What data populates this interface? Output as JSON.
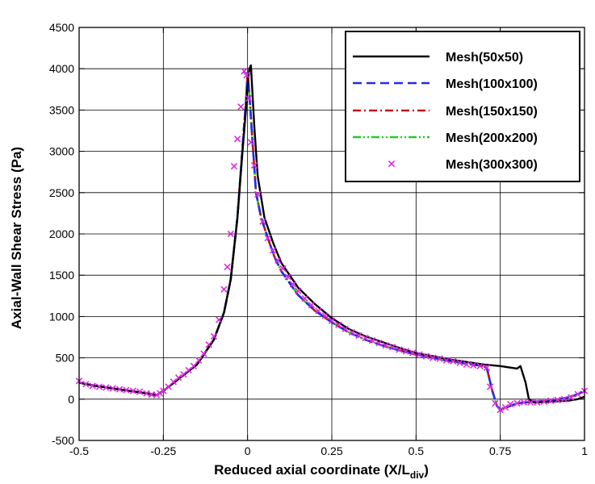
{
  "chart_data": {
    "type": "line",
    "xlabel": "Reduced axial coordinate (X/L",
    "xlabel_sub": "div",
    "xlabel_close": ")",
    "ylabel": "Axial-Wall Shear Stress (Pa)",
    "xlim": [
      -0.5,
      1.0
    ],
    "ylim": [
      -500,
      4500
    ],
    "xticks": [
      -0.5,
      -0.25,
      0,
      0.25,
      0.5,
      0.75,
      1
    ],
    "xtick_labels": [
      "-0.5",
      "-0.25",
      "0",
      "0.25",
      "0.5",
      "0.75",
      "1"
    ],
    "yticks": [
      -500,
      0,
      500,
      1000,
      1500,
      2000,
      2500,
      3000,
      3500,
      4000,
      4500
    ],
    "ytick_labels": [
      "-500",
      "0",
      "500",
      "1000",
      "1500",
      "2000",
      "2500",
      "3000",
      "3500",
      "4000",
      "4500"
    ],
    "grid": true,
    "legend_position": "top-right",
    "series": [
      {
        "name": "Mesh(50x50)",
        "color": "#000000",
        "style": "solid",
        "x": [
          -0.5,
          -0.45,
          -0.4,
          -0.35,
          -0.3,
          -0.27,
          -0.25,
          -0.2,
          -0.15,
          -0.1,
          -0.07,
          -0.05,
          -0.03,
          -0.015,
          -0.005,
          0.0,
          0.005,
          0.01,
          0.02,
          0.03,
          0.05,
          0.075,
          0.1,
          0.15,
          0.2,
          0.25,
          0.3,
          0.35,
          0.4,
          0.45,
          0.5,
          0.55,
          0.6,
          0.65,
          0.7,
          0.75,
          0.8,
          0.81,
          0.825,
          0.835,
          0.85,
          0.9,
          0.95,
          0.98,
          1.0
        ],
        "y": [
          200,
          160,
          130,
          100,
          70,
          50,
          100,
          260,
          420,
          720,
          1050,
          1450,
          2200,
          3000,
          3500,
          3800,
          4000,
          4040,
          3300,
          2700,
          2200,
          1900,
          1650,
          1350,
          1150,
          980,
          850,
          760,
          690,
          620,
          560,
          520,
          480,
          450,
          420,
          400,
          370,
          400,
          200,
          0,
          -40,
          -30,
          -20,
          0,
          30
        ]
      },
      {
        "name": "Mesh(100x100)",
        "color": "#1f2fe8",
        "style": "dashed",
        "x": [
          -0.5,
          -0.45,
          -0.4,
          -0.35,
          -0.3,
          -0.27,
          -0.25,
          -0.2,
          -0.15,
          -0.1,
          -0.07,
          -0.05,
          -0.03,
          -0.015,
          -0.005,
          0.0,
          0.005,
          0.015,
          0.025,
          0.04,
          0.06,
          0.08,
          0.1,
          0.15,
          0.2,
          0.25,
          0.3,
          0.35,
          0.4,
          0.45,
          0.5,
          0.55,
          0.6,
          0.65,
          0.7,
          0.71,
          0.725,
          0.74,
          0.75,
          0.8,
          0.85,
          0.9,
          0.95,
          0.98,
          1.0
        ],
        "y": [
          200,
          160,
          130,
          100,
          70,
          50,
          100,
          260,
          420,
          720,
          1050,
          1450,
          2200,
          3050,
          3600,
          3950,
          3700,
          3100,
          2500,
          2200,
          1950,
          1720,
          1550,
          1260,
          1070,
          930,
          810,
          720,
          650,
          590,
          540,
          500,
          460,
          430,
          400,
          380,
          120,
          -80,
          -130,
          -50,
          -30,
          -20,
          20,
          60,
          100
        ]
      },
      {
        "name": "Mesh(150x150)",
        "color": "#c0141a",
        "style": "dashdot",
        "x": [
          -0.5,
          -0.45,
          -0.4,
          -0.35,
          -0.3,
          -0.27,
          -0.25,
          -0.2,
          -0.15,
          -0.1,
          -0.07,
          -0.05,
          -0.03,
          -0.015,
          -0.005,
          0.0,
          0.005,
          0.015,
          0.025,
          0.04,
          0.06,
          0.08,
          0.1,
          0.15,
          0.2,
          0.25,
          0.3,
          0.35,
          0.4,
          0.45,
          0.5,
          0.55,
          0.6,
          0.65,
          0.7,
          0.71,
          0.725,
          0.74,
          0.75,
          0.8,
          0.85,
          0.9,
          0.95,
          0.98,
          1.0
        ],
        "y": [
          200,
          160,
          130,
          100,
          70,
          50,
          100,
          260,
          420,
          720,
          1050,
          1450,
          2200,
          3050,
          3600,
          3950,
          3700,
          3100,
          2500,
          2200,
          1950,
          1720,
          1550,
          1260,
          1070,
          930,
          810,
          720,
          650,
          590,
          540,
          500,
          460,
          430,
          400,
          380,
          120,
          -80,
          -130,
          -50,
          -30,
          -20,
          20,
          60,
          100
        ]
      },
      {
        "name": "Mesh(200x200)",
        "color": "#22cc22",
        "style": "dashdotdot",
        "x": [
          -0.5,
          -0.45,
          -0.4,
          -0.35,
          -0.3,
          -0.27,
          -0.25,
          -0.2,
          -0.15,
          -0.1,
          -0.07,
          -0.05,
          -0.03,
          -0.015,
          -0.005,
          0.0,
          0.005,
          0.015,
          0.025,
          0.04,
          0.06,
          0.08,
          0.1,
          0.15,
          0.2,
          0.25,
          0.3,
          0.35,
          0.4,
          0.45,
          0.5,
          0.55,
          0.6,
          0.65,
          0.7,
          0.71,
          0.725,
          0.74,
          0.75,
          0.8,
          0.85,
          0.9,
          0.95,
          0.98,
          1.0
        ],
        "y": [
          200,
          160,
          130,
          100,
          70,
          50,
          100,
          260,
          420,
          720,
          1050,
          1450,
          2200,
          3050,
          3600,
          3950,
          3700,
          3100,
          2500,
          2200,
          1950,
          1720,
          1550,
          1260,
          1070,
          930,
          810,
          720,
          650,
          590,
          540,
          500,
          460,
          430,
          400,
          380,
          120,
          -80,
          -130,
          -50,
          -30,
          -20,
          20,
          60,
          100
        ]
      },
      {
        "name": "Mesh(300x300)",
        "color": "#e028e0",
        "style": "markers",
        "x": [
          -0.5,
          -0.48,
          -0.46,
          -0.44,
          -0.42,
          -0.4,
          -0.38,
          -0.36,
          -0.34,
          -0.32,
          -0.3,
          -0.285,
          -0.27,
          -0.26,
          -0.25,
          -0.235,
          -0.22,
          -0.205,
          -0.19,
          -0.175,
          -0.16,
          -0.145,
          -0.13,
          -0.115,
          -0.1,
          -0.085,
          -0.07,
          -0.06,
          -0.05,
          -0.04,
          -0.03,
          -0.02,
          -0.01,
          -0.003,
          0.003,
          0.01,
          0.02,
          0.03,
          0.045,
          0.06,
          0.075,
          0.09,
          0.105,
          0.12,
          0.135,
          0.15,
          0.17,
          0.19,
          0.21,
          0.23,
          0.25,
          0.27,
          0.29,
          0.31,
          0.33,
          0.35,
          0.37,
          0.39,
          0.41,
          0.43,
          0.45,
          0.47,
          0.49,
          0.51,
          0.53,
          0.55,
          0.57,
          0.59,
          0.61,
          0.63,
          0.65,
          0.67,
          0.69,
          0.71,
          0.72,
          0.735,
          0.75,
          0.765,
          0.78,
          0.8,
          0.82,
          0.84,
          0.86,
          0.88,
          0.9,
          0.92,
          0.94,
          0.96,
          0.98,
          1.0
        ],
        "y": [
          220,
          180,
          160,
          150,
          140,
          130,
          120,
          110,
          100,
          90,
          70,
          55,
          50,
          70,
          100,
          150,
          210,
          260,
          300,
          350,
          400,
          470,
          550,
          660,
          760,
          960,
          1330,
          1600,
          2000,
          2820,
          3150,
          3540,
          3970,
          3920,
          3640,
          3110,
          2830,
          2480,
          2150,
          1950,
          1800,
          1680,
          1580,
          1480,
          1390,
          1310,
          1220,
          1140,
          1070,
          1010,
          950,
          900,
          850,
          810,
          770,
          740,
          710,
          680,
          650,
          630,
          600,
          580,
          560,
          540,
          520,
          500,
          490,
          470,
          460,
          440,
          420,
          410,
          400,
          380,
          150,
          -50,
          -130,
          -100,
          -60,
          -50,
          -40,
          -40,
          -40,
          -30,
          -20,
          -10,
          0,
          20,
          60,
          100
        ]
      }
    ]
  }
}
